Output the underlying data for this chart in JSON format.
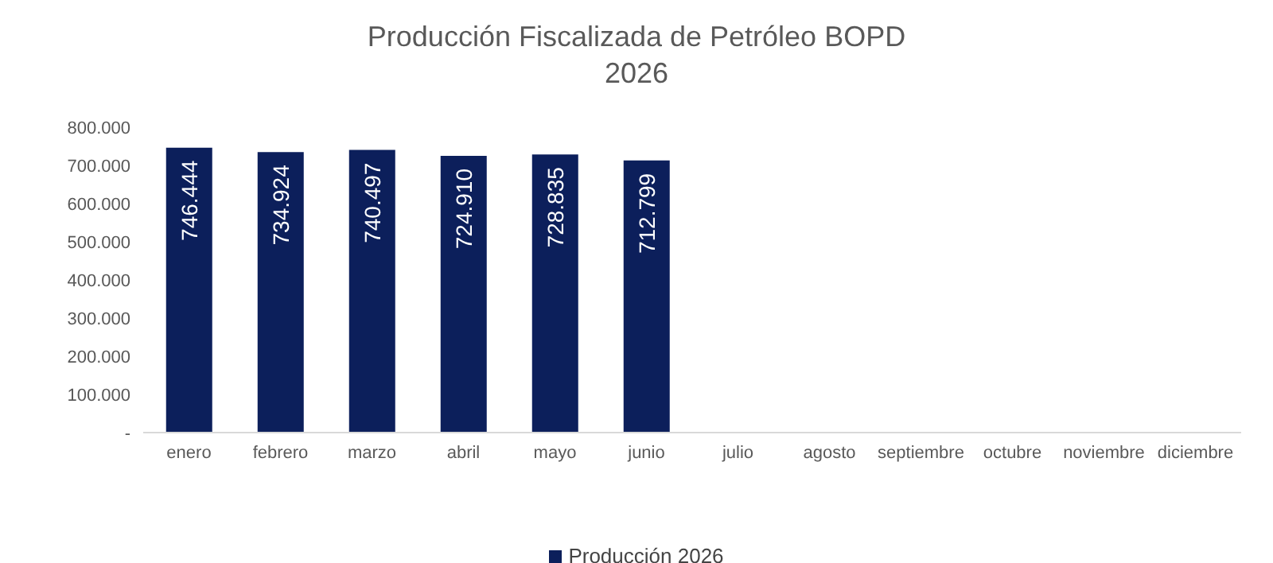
{
  "chart_data": {
    "type": "bar",
    "title": "Producción Fiscalizada de Petróleo BOPD",
    "subtitle": "2026",
    "categories": [
      "enero",
      "febrero",
      "marzo",
      "abril",
      "mayo",
      "junio",
      "julio",
      "agosto",
      "septiembre",
      "octubre",
      "noviembre",
      "diciembre"
    ],
    "series": [
      {
        "name": "Producción 2026",
        "color": "#0c1f5b",
        "values": [
          746444,
          734924,
          740497,
          724910,
          728835,
          712799,
          null,
          null,
          null,
          null,
          null,
          null
        ],
        "value_labels": [
          "746.444",
          "734.924",
          "740.497",
          "724.910",
          "728.835",
          "712.799",
          null,
          null,
          null,
          null,
          null,
          null
        ]
      }
    ],
    "ylim": [
      0,
      800000
    ],
    "yticks": [
      {
        "value": 0,
        "label": "-"
      },
      {
        "value": 100000,
        "label": "100.000"
      },
      {
        "value": 200000,
        "label": "200.000"
      },
      {
        "value": 300000,
        "label": "300.000"
      },
      {
        "value": 400000,
        "label": "400.000"
      },
      {
        "value": 500000,
        "label": "500.000"
      },
      {
        "value": 600000,
        "label": "600.000"
      },
      {
        "value": 700000,
        "label": "700.000"
      },
      {
        "value": 800000,
        "label": "800.000"
      }
    ],
    "grid": false,
    "legend": "bottom"
  }
}
